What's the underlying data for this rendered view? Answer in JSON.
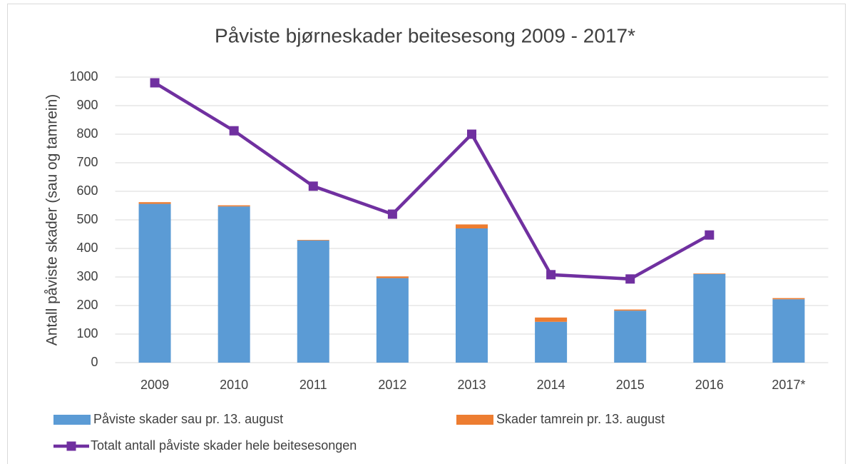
{
  "chart_data": {
    "type": "bar_line",
    "title": "Påviste bjørneskader beitesesong 2009 - 2017*",
    "y_label": "Antall påviste skader (sau og tamrein)",
    "categories": [
      "2009",
      "2010",
      "2011",
      "2012",
      "2013",
      "2014",
      "2015",
      "2016",
      "2017*"
    ],
    "series": [
      {
        "name": "Påviste skader sau pr. 13. august",
        "type": "bar",
        "color": "#5b9bd5",
        "values": [
          556,
          547,
          428,
          296,
          470,
          143,
          182,
          310,
          222
        ]
      },
      {
        "name": "Skader tamrein pr. 13. august",
        "type": "bar",
        "color": "#ed7d31",
        "values": [
          6,
          4,
          2,
          6,
          14,
          15,
          4,
          2,
          4
        ]
      },
      {
        "name": "Totalt antall påviste skader hele beitesesongen",
        "type": "line",
        "color": "#7030a0",
        "values": [
          980,
          812,
          618,
          520,
          800,
          308,
          293,
          447,
          null
        ]
      }
    ],
    "stacked": true,
    "ylim": [
      0,
      1000
    ],
    "yticks": [
      0,
      100,
      200,
      300,
      400,
      500,
      600,
      700,
      800,
      900,
      1000
    ],
    "grid": true,
    "legend": "bottom"
  }
}
